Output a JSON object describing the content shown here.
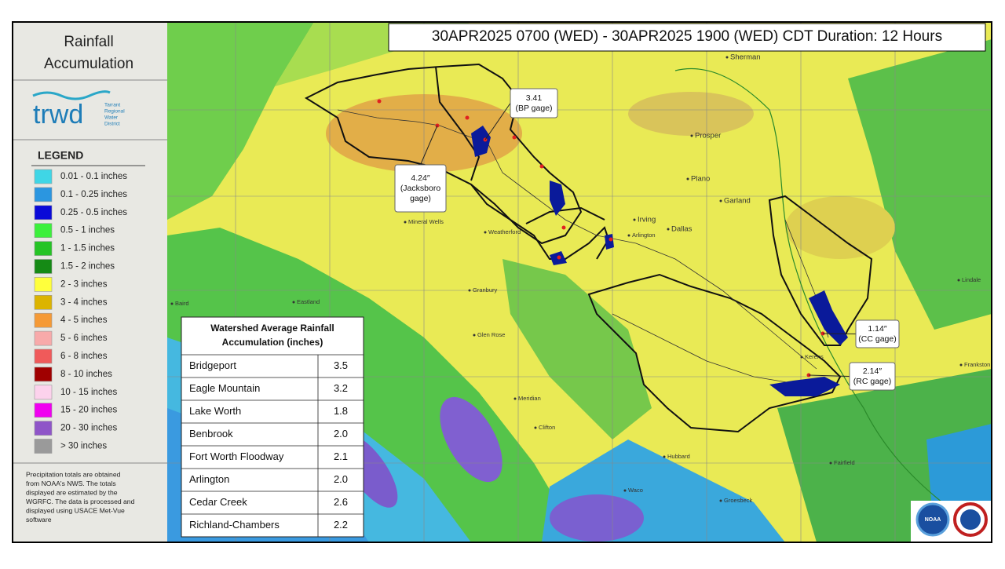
{
  "header": {
    "title": "30APR2025 0700 (WED) - 30APR2025 1900 (WED) CDT Duration: 12 Hours"
  },
  "sidebar": {
    "title_lines": [
      "Rainfall",
      "Accumulation"
    ],
    "logo": {
      "mark": "trwd",
      "org_lines": [
        "Tarrant",
        "Regional",
        "Water",
        "District"
      ]
    },
    "legend_title": "LEGEND",
    "legend": [
      {
        "label": "0.01 - 0.1 inches",
        "color": "#3fd6e6"
      },
      {
        "label": "0.1 - 0.25 inches",
        "color": "#2b96e0"
      },
      {
        "label": "0.25 - 0.5 inches",
        "color": "#0a0ad8"
      },
      {
        "label": "0.5 - 1 inches",
        "color": "#3cf03c"
      },
      {
        "label": "1 - 1.5 inches",
        "color": "#25c425"
      },
      {
        "label": "1.5 - 2 inches",
        "color": "#158a15"
      },
      {
        "label": "2 - 3 inches",
        "color": "#ffff3c"
      },
      {
        "label": "3 - 4 inches",
        "color": "#dcb400"
      },
      {
        "label": "4 - 5 inches",
        "color": "#f59a36"
      },
      {
        "label": "5 - 6 inches",
        "color": "#f8aaaa"
      },
      {
        "label": "6 - 8 inches",
        "color": "#f05a5a"
      },
      {
        "label": "8 - 10 inches",
        "color": "#a00000"
      },
      {
        "label": "10 - 15 inches",
        "color": "#fcd2ec"
      },
      {
        "label": "15 - 20 inches",
        "color": "#f000f0"
      },
      {
        "label": "20 - 30 inches",
        "color": "#8f55c8"
      },
      {
        "label": "> 30 inches",
        "color": "#9a9a9a"
      }
    ],
    "footnote_lines": [
      "Precipitation totals are obtained",
      "from NOAA's NWS.  The totals",
      "displayed are estimated by the",
      "WGRFC.  The data is processed and",
      "displayed using USACE Met-Vue",
      "software"
    ]
  },
  "table": {
    "title_lines": [
      "Watershed Average Rainfall",
      "Accumulation (inches)"
    ],
    "rows": [
      [
        "Bridgeport",
        "3.5"
      ],
      [
        "Eagle Mountain",
        "3.2"
      ],
      [
        "Lake Worth",
        "1.8"
      ],
      [
        "Benbrook",
        "2.0"
      ],
      [
        "Fort Worth Floodway",
        "2.1"
      ],
      [
        "Arlington",
        "2.0"
      ],
      [
        "Cedar Creek",
        "2.6"
      ],
      [
        "Richland-Chambers",
        "2.2"
      ]
    ]
  },
  "callouts": [
    {
      "lines": [
        "3.41",
        "(BP gage)"
      ]
    },
    {
      "lines": [
        "4.24″",
        "(Jacksboro",
        "gage)"
      ]
    },
    {
      "lines": [
        "1.14″",
        "(CC gage)"
      ]
    },
    {
      "lines": [
        "2.14″",
        "(RC gage)"
      ]
    }
  ],
  "places": [
    "Sherman",
    "Prosper",
    "Plano",
    "Garland",
    "Irving",
    "Dallas",
    "Arlington",
    "Mineral Wells",
    "Weatherford",
    "Granbury",
    "Glen Rose",
    "Eastland",
    "Baird",
    "Meridian",
    "Clifton",
    "Waco",
    "Hubbard",
    "Groesbeck",
    "Fairfield",
    "Kerens",
    "Lindale",
    "Frankston"
  ],
  "logos": {
    "noaa": "NOAA"
  }
}
